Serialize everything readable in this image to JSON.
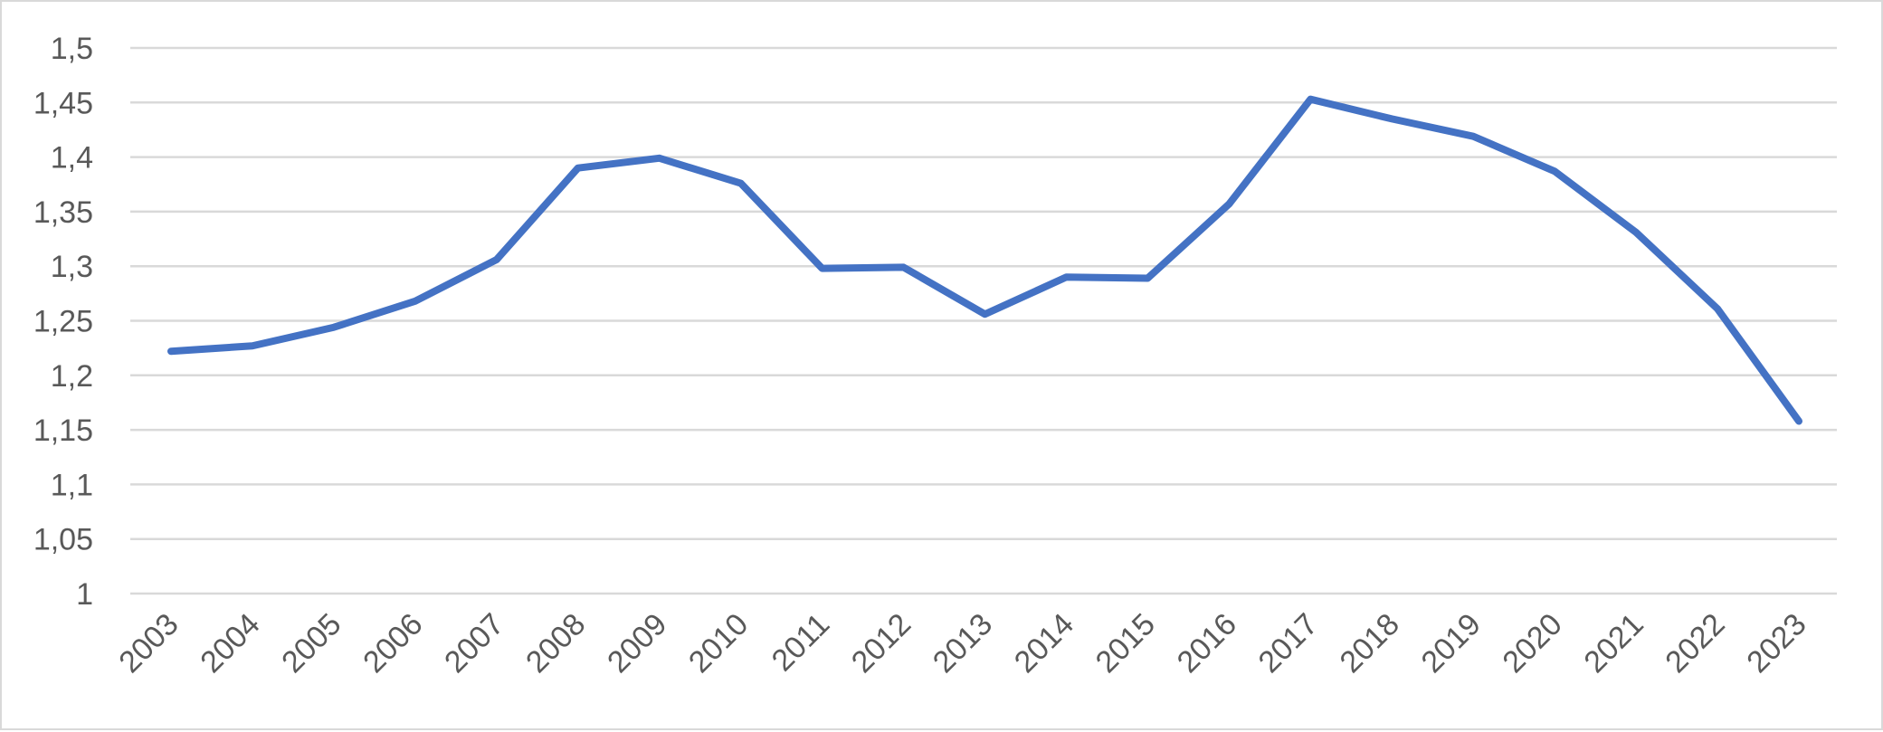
{
  "chart_data": {
    "type": "line",
    "title": "",
    "xlabel": "",
    "ylabel": "",
    "categories": [
      "2003",
      "2004",
      "2005",
      "2006",
      "2007",
      "2008",
      "2009",
      "2010",
      "2011",
      "2012",
      "2013",
      "2014",
      "2015",
      "2016",
      "2017",
      "2018",
      "2019",
      "2020",
      "2021",
      "2022",
      "2023"
    ],
    "y_ticks": [
      "1",
      "1,05",
      "1,1",
      "1,15",
      "1,2",
      "1,25",
      "1,3",
      "1,35",
      "1,4",
      "1,45",
      "1,5"
    ],
    "ylim": [
      1,
      1.5
    ],
    "grid": true,
    "legend": "none",
    "series": [
      {
        "color": "#4472c4",
        "values": [
          1.222,
          1.227,
          1.244,
          1.268,
          1.306,
          1.39,
          1.399,
          1.376,
          1.298,
          1.299,
          1.256,
          1.29,
          1.289,
          1.357,
          1.453,
          1.435,
          1.419,
          1.387,
          1.331,
          1.261,
          1.158
        ]
      }
    ]
  }
}
